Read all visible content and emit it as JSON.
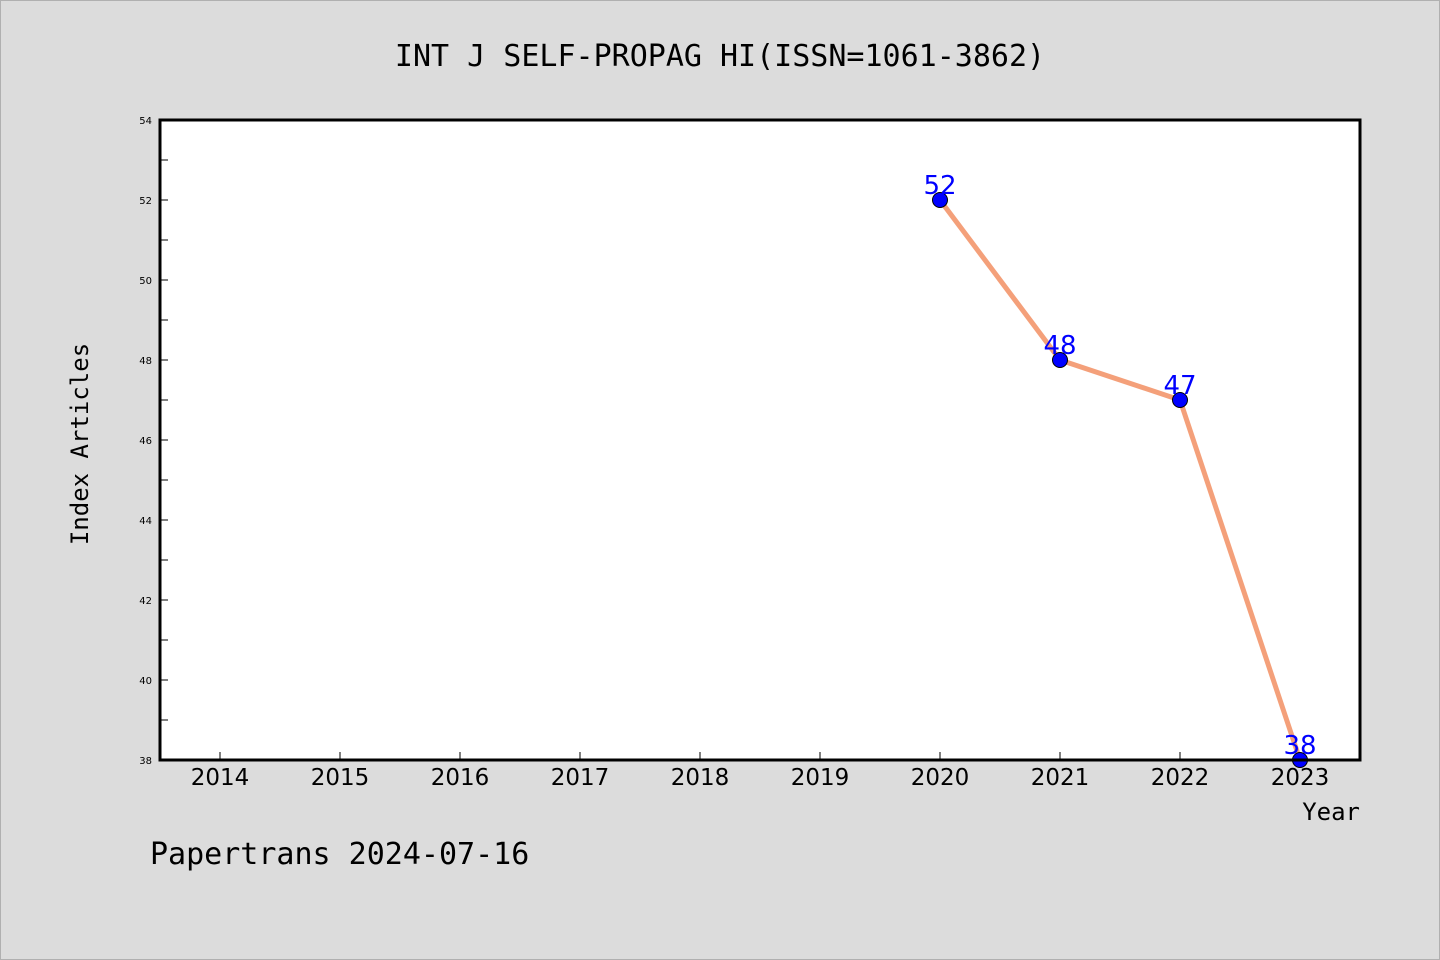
{
  "chart_data": {
    "type": "line",
    "title": "INT J SELF-PROPAG HI(ISSN=1061-3862)",
    "xlabel": "Year",
    "ylabel": "Index Articles",
    "categories": [
      "2014",
      "2015",
      "2016",
      "2017",
      "2018",
      "2019",
      "2020",
      "2021",
      "2022",
      "2023"
    ],
    "yticks": [
      38,
      40,
      42,
      44,
      46,
      48,
      50,
      52,
      54
    ],
    "ylim": [
      38,
      54
    ],
    "series": [
      {
        "x": [
          "2020",
          "2021",
          "2022",
          "2023"
        ],
        "values": [
          52,
          48,
          47,
          38
        ],
        "line_color": "#f4a07a",
        "marker_color": "#0000ff",
        "label_color": "#0000ff"
      }
    ],
    "grid": false
  },
  "footer": {
    "text": "Papertrans 2024-07-16"
  }
}
